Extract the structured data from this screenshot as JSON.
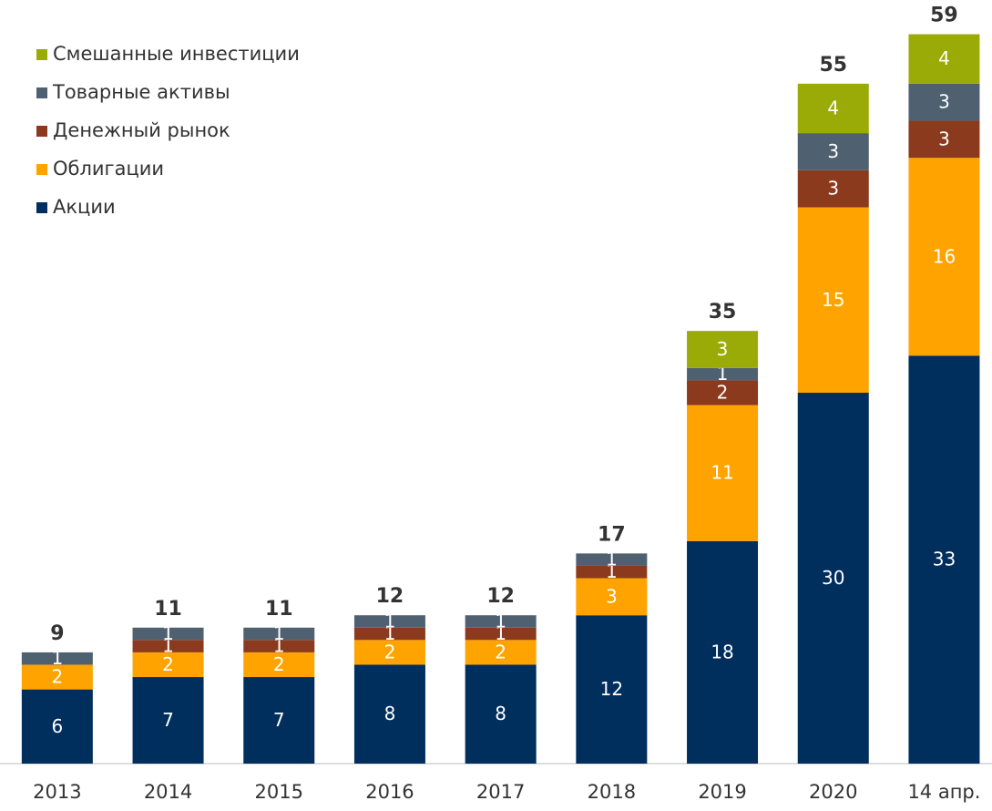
{
  "chart_data": {
    "type": "stacked_bar",
    "categories": [
      "2013",
      "2014",
      "2015",
      "2016",
      "2017",
      "2018",
      "2019",
      "2020",
      "14 апр."
    ],
    "series": [
      {
        "name": "Акции",
        "color": "#002e5d",
        "values": [
          6,
          7,
          7,
          8,
          8,
          12,
          18,
          30,
          33
        ]
      },
      {
        "name": "Облигации",
        "color": "#ffa300",
        "values": [
          2,
          2,
          2,
          2,
          2,
          3,
          11,
          15,
          16
        ]
      },
      {
        "name": "Денежный рынок",
        "color": "#8b3a1e",
        "values": [
          null,
          1,
          1,
          1,
          1,
          1,
          2,
          3,
          3
        ]
      },
      {
        "name": "Товарные активы",
        "color": "#4f6170",
        "values": [
          1,
          1,
          1,
          1,
          1,
          1,
          1,
          3,
          3
        ]
      },
      {
        "name": "Смешанные инвестиции",
        "color": "#9aab08",
        "values": [
          null,
          null,
          null,
          null,
          null,
          null,
          3,
          4,
          4
        ]
      }
    ],
    "totals": [
      9,
      11,
      11,
      12,
      12,
      17,
      35,
      55,
      59
    ],
    "ylim": [
      0,
      60
    ],
    "legend": "upper left"
  }
}
